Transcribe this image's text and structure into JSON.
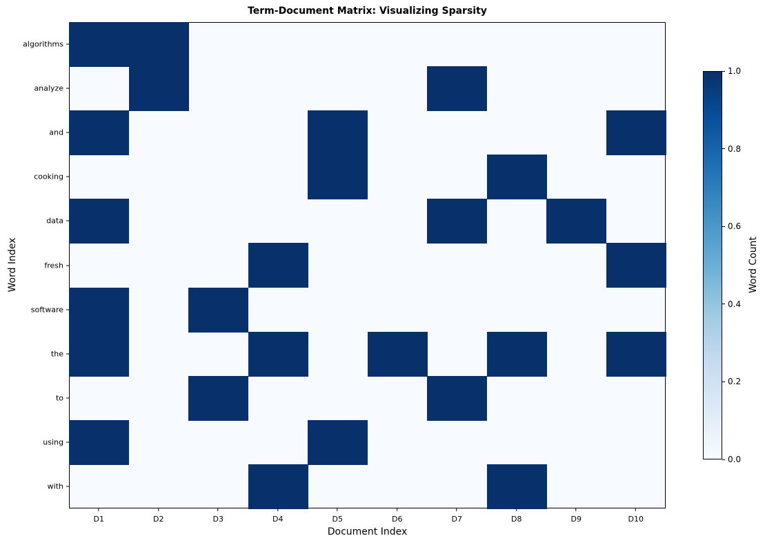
{
  "chart_data": {
    "type": "heatmap",
    "title": "Term-Document Matrix: Visualizing Sparsity",
    "xlabel": "Document Index",
    "ylabel": "Word Index",
    "x_categories": [
      "D1",
      "D2",
      "D3",
      "D4",
      "D5",
      "D6",
      "D7",
      "D8",
      "D9",
      "D10"
    ],
    "y_categories": [
      "algorithms",
      "analyze",
      "and",
      "cooking",
      "data",
      "fresh",
      "software",
      "the",
      "to",
      "using",
      "with"
    ],
    "values": [
      [
        1,
        1,
        0,
        0,
        0,
        0,
        0,
        0,
        0,
        0
      ],
      [
        0,
        1,
        0,
        0,
        0,
        0,
        1,
        0,
        0,
        0
      ],
      [
        1,
        0,
        0,
        0,
        1,
        0,
        0,
        0,
        0,
        1
      ],
      [
        0,
        0,
        0,
        0,
        1,
        0,
        0,
        1,
        0,
        0
      ],
      [
        1,
        0,
        0,
        0,
        0,
        0,
        1,
        0,
        1,
        0
      ],
      [
        0,
        0,
        0,
        1,
        0,
        0,
        0,
        0,
        0,
        1
      ],
      [
        1,
        0,
        1,
        0,
        0,
        0,
        0,
        0,
        0,
        0
      ],
      [
        1,
        0,
        0,
        1,
        0,
        1,
        0,
        1,
        0,
        1
      ],
      [
        0,
        0,
        1,
        0,
        0,
        0,
        1,
        0,
        0,
        0
      ],
      [
        1,
        0,
        0,
        0,
        1,
        0,
        0,
        0,
        0,
        0
      ],
      [
        0,
        0,
        0,
        1,
        0,
        0,
        0,
        1,
        0,
        0
      ]
    ],
    "colormap": "Blues",
    "colors": {
      "low": "#f7fbff",
      "high": "#08306b"
    },
    "colorbar": {
      "label": "Word Count",
      "range": [
        0.0,
        1.0
      ],
      "ticks": [
        "0.0",
        "0.2",
        "0.4",
        "0.6",
        "0.8",
        "1.0"
      ]
    },
    "grid": false,
    "legend_position": "right (colorbar)"
  }
}
